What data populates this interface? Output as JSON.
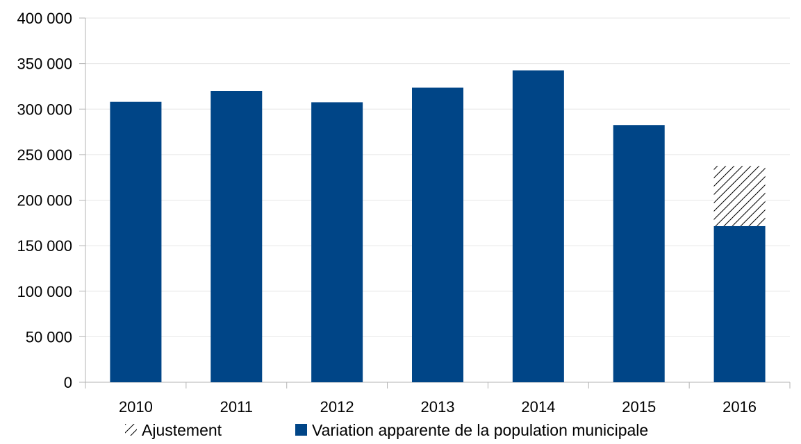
{
  "chart_data": {
    "type": "bar",
    "stacked": true,
    "categories": [
      "2010",
      "2011",
      "2012",
      "2013",
      "2014",
      "2015",
      "2016"
    ],
    "series": [
      {
        "name": "Variation apparente de la population municipale",
        "color": "#004587",
        "pattern": "solid",
        "values": [
          308000,
          320000,
          307500,
          323500,
          342500,
          282500,
          171500
        ]
      },
      {
        "name": "Ajustement",
        "color": "#000000",
        "pattern": "hatched",
        "values": [
          0,
          0,
          0,
          0,
          0,
          0,
          66000
        ]
      }
    ],
    "ylim": [
      0,
      400000
    ],
    "yticks": [
      0,
      50000,
      100000,
      150000,
      200000,
      250000,
      300000,
      350000,
      400000
    ],
    "ytick_labels": [
      "0",
      "50 000",
      "100 000",
      "150 000",
      "200 000",
      "250 000",
      "300 000",
      "350 000",
      "400 000"
    ],
    "grid": true,
    "legend_position": "bottom"
  }
}
